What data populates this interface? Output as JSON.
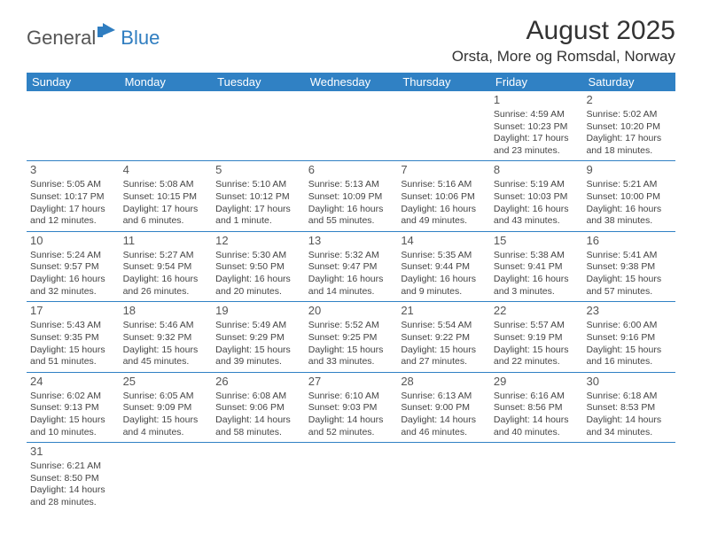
{
  "logo": {
    "text1": "General",
    "text2": "Blue"
  },
  "title": "August 2025",
  "location": "Orsta, More og Romsdal, Norway",
  "colors": {
    "header_bg": "#3081c4",
    "header_text": "#ffffff",
    "border": "#3081c4",
    "text": "#444444"
  },
  "weekdays": [
    "Sunday",
    "Monday",
    "Tuesday",
    "Wednesday",
    "Thursday",
    "Friday",
    "Saturday"
  ],
  "weeks": [
    [
      null,
      null,
      null,
      null,
      null,
      {
        "d": "1",
        "sr": "Sunrise: 4:59 AM",
        "ss": "Sunset: 10:23 PM",
        "dl1": "Daylight: 17 hours",
        "dl2": "and 23 minutes."
      },
      {
        "d": "2",
        "sr": "Sunrise: 5:02 AM",
        "ss": "Sunset: 10:20 PM",
        "dl1": "Daylight: 17 hours",
        "dl2": "and 18 minutes."
      }
    ],
    [
      {
        "d": "3",
        "sr": "Sunrise: 5:05 AM",
        "ss": "Sunset: 10:17 PM",
        "dl1": "Daylight: 17 hours",
        "dl2": "and 12 minutes."
      },
      {
        "d": "4",
        "sr": "Sunrise: 5:08 AM",
        "ss": "Sunset: 10:15 PM",
        "dl1": "Daylight: 17 hours",
        "dl2": "and 6 minutes."
      },
      {
        "d": "5",
        "sr": "Sunrise: 5:10 AM",
        "ss": "Sunset: 10:12 PM",
        "dl1": "Daylight: 17 hours",
        "dl2": "and 1 minute."
      },
      {
        "d": "6",
        "sr": "Sunrise: 5:13 AM",
        "ss": "Sunset: 10:09 PM",
        "dl1": "Daylight: 16 hours",
        "dl2": "and 55 minutes."
      },
      {
        "d": "7",
        "sr": "Sunrise: 5:16 AM",
        "ss": "Sunset: 10:06 PM",
        "dl1": "Daylight: 16 hours",
        "dl2": "and 49 minutes."
      },
      {
        "d": "8",
        "sr": "Sunrise: 5:19 AM",
        "ss": "Sunset: 10:03 PM",
        "dl1": "Daylight: 16 hours",
        "dl2": "and 43 minutes."
      },
      {
        "d": "9",
        "sr": "Sunrise: 5:21 AM",
        "ss": "Sunset: 10:00 PM",
        "dl1": "Daylight: 16 hours",
        "dl2": "and 38 minutes."
      }
    ],
    [
      {
        "d": "10",
        "sr": "Sunrise: 5:24 AM",
        "ss": "Sunset: 9:57 PM",
        "dl1": "Daylight: 16 hours",
        "dl2": "and 32 minutes."
      },
      {
        "d": "11",
        "sr": "Sunrise: 5:27 AM",
        "ss": "Sunset: 9:54 PM",
        "dl1": "Daylight: 16 hours",
        "dl2": "and 26 minutes."
      },
      {
        "d": "12",
        "sr": "Sunrise: 5:30 AM",
        "ss": "Sunset: 9:50 PM",
        "dl1": "Daylight: 16 hours",
        "dl2": "and 20 minutes."
      },
      {
        "d": "13",
        "sr": "Sunrise: 5:32 AM",
        "ss": "Sunset: 9:47 PM",
        "dl1": "Daylight: 16 hours",
        "dl2": "and 14 minutes."
      },
      {
        "d": "14",
        "sr": "Sunrise: 5:35 AM",
        "ss": "Sunset: 9:44 PM",
        "dl1": "Daylight: 16 hours",
        "dl2": "and 9 minutes."
      },
      {
        "d": "15",
        "sr": "Sunrise: 5:38 AM",
        "ss": "Sunset: 9:41 PM",
        "dl1": "Daylight: 16 hours",
        "dl2": "and 3 minutes."
      },
      {
        "d": "16",
        "sr": "Sunrise: 5:41 AM",
        "ss": "Sunset: 9:38 PM",
        "dl1": "Daylight: 15 hours",
        "dl2": "and 57 minutes."
      }
    ],
    [
      {
        "d": "17",
        "sr": "Sunrise: 5:43 AM",
        "ss": "Sunset: 9:35 PM",
        "dl1": "Daylight: 15 hours",
        "dl2": "and 51 minutes."
      },
      {
        "d": "18",
        "sr": "Sunrise: 5:46 AM",
        "ss": "Sunset: 9:32 PM",
        "dl1": "Daylight: 15 hours",
        "dl2": "and 45 minutes."
      },
      {
        "d": "19",
        "sr": "Sunrise: 5:49 AM",
        "ss": "Sunset: 9:29 PM",
        "dl1": "Daylight: 15 hours",
        "dl2": "and 39 minutes."
      },
      {
        "d": "20",
        "sr": "Sunrise: 5:52 AM",
        "ss": "Sunset: 9:25 PM",
        "dl1": "Daylight: 15 hours",
        "dl2": "and 33 minutes."
      },
      {
        "d": "21",
        "sr": "Sunrise: 5:54 AM",
        "ss": "Sunset: 9:22 PM",
        "dl1": "Daylight: 15 hours",
        "dl2": "and 27 minutes."
      },
      {
        "d": "22",
        "sr": "Sunrise: 5:57 AM",
        "ss": "Sunset: 9:19 PM",
        "dl1": "Daylight: 15 hours",
        "dl2": "and 22 minutes."
      },
      {
        "d": "23",
        "sr": "Sunrise: 6:00 AM",
        "ss": "Sunset: 9:16 PM",
        "dl1": "Daylight: 15 hours",
        "dl2": "and 16 minutes."
      }
    ],
    [
      {
        "d": "24",
        "sr": "Sunrise: 6:02 AM",
        "ss": "Sunset: 9:13 PM",
        "dl1": "Daylight: 15 hours",
        "dl2": "and 10 minutes."
      },
      {
        "d": "25",
        "sr": "Sunrise: 6:05 AM",
        "ss": "Sunset: 9:09 PM",
        "dl1": "Daylight: 15 hours",
        "dl2": "and 4 minutes."
      },
      {
        "d": "26",
        "sr": "Sunrise: 6:08 AM",
        "ss": "Sunset: 9:06 PM",
        "dl1": "Daylight: 14 hours",
        "dl2": "and 58 minutes."
      },
      {
        "d": "27",
        "sr": "Sunrise: 6:10 AM",
        "ss": "Sunset: 9:03 PM",
        "dl1": "Daylight: 14 hours",
        "dl2": "and 52 minutes."
      },
      {
        "d": "28",
        "sr": "Sunrise: 6:13 AM",
        "ss": "Sunset: 9:00 PM",
        "dl1": "Daylight: 14 hours",
        "dl2": "and 46 minutes."
      },
      {
        "d": "29",
        "sr": "Sunrise: 6:16 AM",
        "ss": "Sunset: 8:56 PM",
        "dl1": "Daylight: 14 hours",
        "dl2": "and 40 minutes."
      },
      {
        "d": "30",
        "sr": "Sunrise: 6:18 AM",
        "ss": "Sunset: 8:53 PM",
        "dl1": "Daylight: 14 hours",
        "dl2": "and 34 minutes."
      }
    ],
    [
      {
        "d": "31",
        "sr": "Sunrise: 6:21 AM",
        "ss": "Sunset: 8:50 PM",
        "dl1": "Daylight: 14 hours",
        "dl2": "and 28 minutes."
      },
      null,
      null,
      null,
      null,
      null,
      null
    ]
  ]
}
